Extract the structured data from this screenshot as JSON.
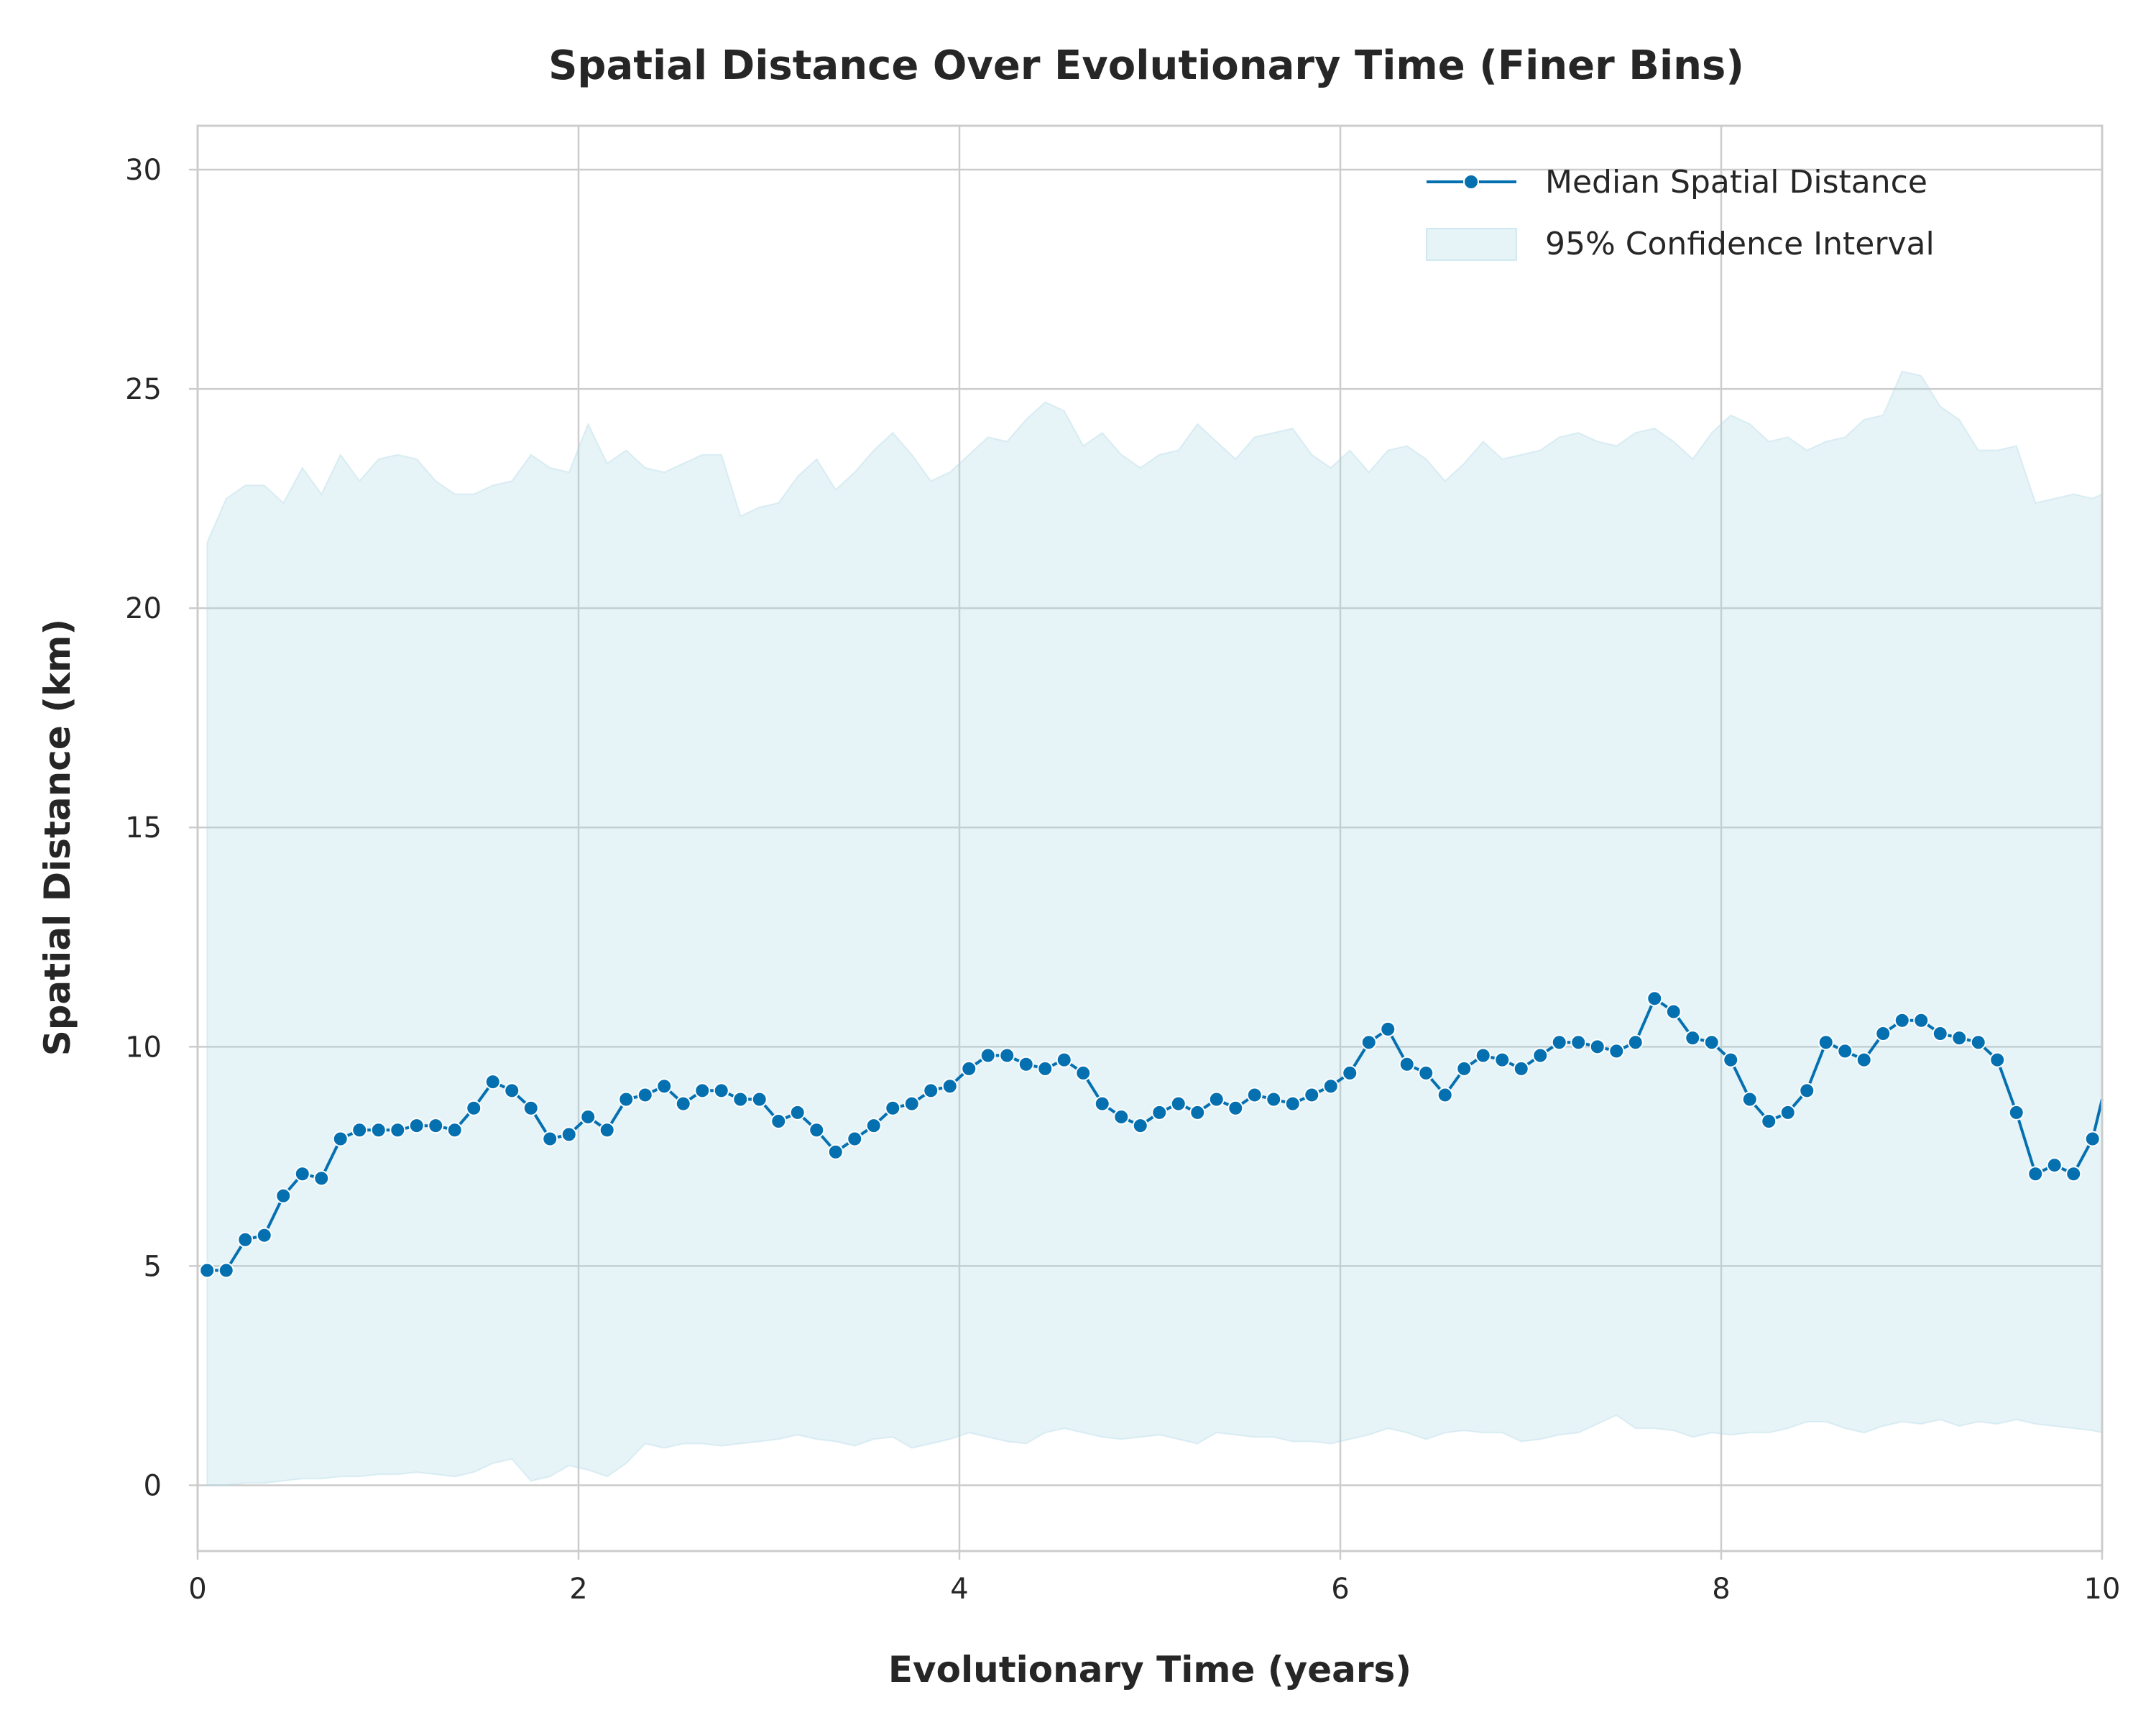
{
  "chart_data": {
    "type": "line",
    "title": "Spatial Distance Over Evolutionary Time (Finer Bins)",
    "xlabel": "Evolutionary Time (years)",
    "ylabel": "Spatial Distance (km)",
    "xlim": [
      0,
      10
    ],
    "ylim": [
      -1.5,
      31
    ],
    "xticks": [
      0,
      2,
      4,
      6,
      8,
      10
    ],
    "yticks": [
      0,
      5,
      10,
      15,
      20,
      25,
      30
    ],
    "grid": true,
    "legend_position": "top-right",
    "colors": {
      "line": "#0570b0",
      "band": "#add8e6",
      "grid": "#cccccc",
      "spine": "#cccccc"
    },
    "series": [
      {
        "name": "Median Spatial Distance",
        "kind": "line-markers",
        "x": [
          0.05,
          0.15,
          0.25,
          0.35,
          0.45,
          0.55,
          0.65,
          0.75,
          0.85,
          0.95,
          1.05,
          1.15,
          1.25,
          1.35,
          1.45,
          1.55,
          1.65,
          1.75,
          1.85,
          1.95,
          2.05,
          2.15,
          2.25,
          2.35,
          2.45,
          2.55,
          2.65,
          2.75,
          2.85,
          2.95,
          3.05,
          3.15,
          3.25,
          3.35,
          3.45,
          3.55,
          3.65,
          3.75,
          3.85,
          3.95,
          4.05,
          4.15,
          4.25,
          4.35,
          4.45,
          4.55,
          4.65,
          4.75,
          4.85,
          4.95,
          5.05,
          5.15,
          5.25,
          5.35,
          5.45,
          5.55,
          5.65,
          5.75,
          5.85,
          5.95,
          6.05,
          6.15,
          6.25,
          6.35,
          6.45,
          6.55,
          6.65,
          6.75,
          6.85,
          6.95,
          7.05,
          7.15,
          7.25,
          7.35,
          7.45,
          7.55,
          7.65,
          7.75,
          7.85,
          7.95,
          8.05,
          8.15,
          8.25,
          8.35,
          8.45,
          8.55,
          8.65,
          8.75,
          8.85,
          8.95,
          9.05,
          9.15,
          9.25,
          9.35,
          9.45,
          9.55,
          9.65,
          9.75,
          9.85,
          9.95,
          10.0
        ],
        "values": [
          4.9,
          4.9,
          5.6,
          5.7,
          6.6,
          7.1,
          7.0,
          7.9,
          8.1,
          8.1,
          8.1,
          8.2,
          8.2,
          8.1,
          8.6,
          9.2,
          9.0,
          8.6,
          7.9,
          8.0,
          8.4,
          8.1,
          8.8,
          8.9,
          9.1,
          8.7,
          9.0,
          9.0,
          8.8,
          8.8,
          8.3,
          8.5,
          8.1,
          7.6,
          7.9,
          8.2,
          8.6,
          8.7,
          9.0,
          9.1,
          9.5,
          9.8,
          9.8,
          9.6,
          9.5,
          9.7,
          9.4,
          8.7,
          8.4,
          8.2,
          8.5,
          8.7,
          8.5,
          8.8,
          8.6,
          8.9,
          8.8,
          8.7,
          8.9,
          9.1,
          9.4,
          10.1,
          10.4,
          9.6,
          9.4,
          8.9,
          9.5,
          9.8,
          9.7,
          9.5,
          9.8,
          10.1,
          10.1,
          10.0,
          9.9,
          10.1,
          11.1,
          10.8,
          10.2,
          10.1,
          9.7,
          8.8,
          8.3,
          8.5,
          9.0,
          10.1,
          9.9,
          9.7,
          10.3,
          10.6,
          10.6,
          10.3,
          10.2,
          10.1,
          9.7,
          8.5,
          7.1,
          7.3,
          7.1,
          7.9,
          8.8
        ]
      },
      {
        "name": "95% Confidence Interval",
        "kind": "band",
        "x": [
          0.05,
          0.15,
          0.25,
          0.35,
          0.45,
          0.55,
          0.65,
          0.75,
          0.85,
          0.95,
          1.05,
          1.15,
          1.25,
          1.35,
          1.45,
          1.55,
          1.65,
          1.75,
          1.85,
          1.95,
          2.05,
          2.15,
          2.25,
          2.35,
          2.45,
          2.55,
          2.65,
          2.75,
          2.85,
          2.95,
          3.05,
          3.15,
          3.25,
          3.35,
          3.45,
          3.55,
          3.65,
          3.75,
          3.85,
          3.95,
          4.05,
          4.15,
          4.25,
          4.35,
          4.45,
          4.55,
          4.65,
          4.75,
          4.85,
          4.95,
          5.05,
          5.15,
          5.25,
          5.35,
          5.45,
          5.55,
          5.65,
          5.75,
          5.85,
          5.95,
          6.05,
          6.15,
          6.25,
          6.35,
          6.45,
          6.55,
          6.65,
          6.75,
          6.85,
          6.95,
          7.05,
          7.15,
          7.25,
          7.35,
          7.45,
          7.55,
          7.65,
          7.75,
          7.85,
          7.95,
          8.05,
          8.15,
          8.25,
          8.35,
          8.45,
          8.55,
          8.65,
          8.75,
          8.85,
          8.95,
          9.05,
          9.15,
          9.25,
          9.35,
          9.45,
          9.55,
          9.65,
          9.75,
          9.85,
          9.95,
          10.0
        ],
        "upper": [
          21.5,
          22.5,
          22.8,
          22.8,
          22.4,
          23.2,
          22.6,
          23.5,
          22.9,
          23.4,
          23.5,
          23.4,
          22.9,
          22.6,
          22.6,
          22.8,
          22.9,
          23.5,
          23.2,
          23.1,
          24.2,
          23.3,
          23.6,
          23.2,
          23.1,
          23.3,
          23.5,
          23.5,
          22.1,
          22.3,
          22.4,
          23.0,
          23.4,
          22.7,
          23.1,
          23.6,
          24.0,
          23.5,
          22.9,
          23.1,
          23.5,
          23.9,
          23.8,
          24.3,
          24.7,
          24.5,
          23.7,
          24.0,
          23.5,
          23.2,
          23.5,
          23.6,
          24.2,
          23.8,
          23.4,
          23.9,
          24.0,
          24.1,
          23.5,
          23.2,
          23.6,
          23.1,
          23.6,
          23.7,
          23.4,
          22.9,
          23.3,
          23.8,
          23.4,
          23.5,
          23.6,
          23.9,
          24.0,
          23.8,
          23.7,
          24.0,
          24.1,
          23.8,
          23.4,
          24.0,
          24.4,
          24.2,
          23.8,
          23.9,
          23.6,
          23.8,
          23.9,
          24.3,
          24.4,
          25.4,
          25.3,
          24.6,
          24.3,
          23.6,
          23.6,
          23.7,
          22.4,
          22.5,
          22.6,
          22.5,
          22.6
        ],
        "lower": [
          0.0,
          0.0,
          0.05,
          0.05,
          0.1,
          0.15,
          0.15,
          0.2,
          0.2,
          0.25,
          0.25,
          0.3,
          0.25,
          0.2,
          0.3,
          0.5,
          0.6,
          0.1,
          0.2,
          0.45,
          0.35,
          0.2,
          0.5,
          0.95,
          0.85,
          0.95,
          0.95,
          0.9,
          0.95,
          1.0,
          1.05,
          1.15,
          1.05,
          1.0,
          0.9,
          1.05,
          1.1,
          0.85,
          0.95,
          1.05,
          1.2,
          1.1,
          1.0,
          0.95,
          1.2,
          1.3,
          1.2,
          1.1,
          1.05,
          1.1,
          1.15,
          1.05,
          0.95,
          1.2,
          1.15,
          1.1,
          1.1,
          1.0,
          1.0,
          0.95,
          1.05,
          1.15,
          1.3,
          1.2,
          1.05,
          1.2,
          1.25,
          1.2,
          1.2,
          1.0,
          1.05,
          1.15,
          1.2,
          1.4,
          1.6,
          1.3,
          1.3,
          1.25,
          1.1,
          1.2,
          1.15,
          1.2,
          1.2,
          1.3,
          1.45,
          1.45,
          1.3,
          1.2,
          1.35,
          1.45,
          1.4,
          1.5,
          1.35,
          1.45,
          1.4,
          1.5,
          1.4,
          1.35,
          1.3,
          1.25,
          1.2
        ]
      }
    ]
  }
}
